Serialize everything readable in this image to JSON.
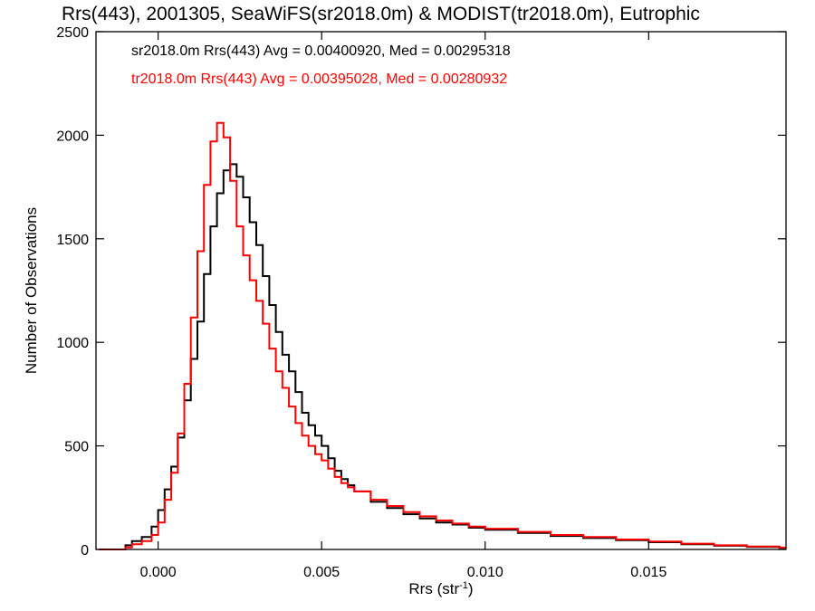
{
  "chart_data": {
    "type": "line",
    "title": "Rrs(443), 2001305, SeaWiFS(sr2018.0m) & MODIST(tr2018.0m), Eutrophic",
    "xlabel": "Rrs (str",
    "xlabel_sup": "-1",
    "xlabel_end": ")",
    "ylabel": "Number of Observations",
    "xlim": [
      -0.0019,
      0.0192
    ],
    "ylim": [
      0,
      2500
    ],
    "x_ticks": [
      0.0,
      0.005,
      0.01,
      0.015
    ],
    "x_tick_labels": [
      "0.000",
      "0.005",
      "0.010",
      "0.015"
    ],
    "y_ticks": [
      0,
      500,
      1000,
      1500,
      2000,
      2500
    ],
    "y_tick_labels": [
      "0",
      "500",
      "1000",
      "1500",
      "2000",
      "2500"
    ],
    "legend": {
      "placement": "top-left",
      "entries": [
        "sr2018.0m Rrs(443) Avg = 0.00400920, Med = 0.00295318",
        "tr2018.0m Rrs(443) Avg = 0.00395028, Med = 0.00280932"
      ]
    },
    "series": [
      {
        "color": "#000000",
        "x": [
          -0.0018,
          -0.0012,
          -0.001,
          -0.0008,
          -0.0005,
          -0.0002,
          0.0,
          0.0002,
          0.0004,
          0.0006,
          0.0008,
          0.001,
          0.0012,
          0.0014,
          0.0016,
          0.0018,
          0.002,
          0.0022,
          0.0024,
          0.0026,
          0.0028,
          0.003,
          0.0032,
          0.0034,
          0.0036,
          0.0038,
          0.004,
          0.0042,
          0.0044,
          0.0046,
          0.0048,
          0.005,
          0.0052,
          0.0054,
          0.0056,
          0.0058,
          0.006,
          0.0065,
          0.007,
          0.0075,
          0.008,
          0.0085,
          0.009,
          0.0095,
          0.01,
          0.011,
          0.012,
          0.013,
          0.014,
          0.015,
          0.016,
          0.017,
          0.018,
          0.019
        ],
        "y": [
          0,
          0,
          20,
          40,
          60,
          110,
          190,
          290,
          400,
          540,
          720,
          920,
          1100,
          1330,
          1560,
          1720,
          1830,
          1860,
          1800,
          1700,
          1580,
          1470,
          1320,
          1180,
          1050,
          940,
          860,
          760,
          660,
          600,
          550,
          500,
          440,
          380,
          340,
          310,
          280,
          230,
          200,
          170,
          150,
          130,
          120,
          105,
          95,
          80,
          65,
          55,
          45,
          35,
          25,
          18,
          12,
          8
        ]
      },
      {
        "color": "#ff0000",
        "x": [
          -0.0018,
          -0.0012,
          -0.001,
          -0.0008,
          -0.0005,
          -0.0002,
          0.0,
          0.0002,
          0.0004,
          0.0006,
          0.0008,
          0.001,
          0.0012,
          0.0014,
          0.0016,
          0.0018,
          0.002,
          0.0022,
          0.0024,
          0.0026,
          0.0028,
          0.003,
          0.0032,
          0.0034,
          0.0036,
          0.0038,
          0.004,
          0.0042,
          0.0044,
          0.0046,
          0.0048,
          0.005,
          0.0052,
          0.0054,
          0.0056,
          0.0058,
          0.006,
          0.0065,
          0.007,
          0.0075,
          0.008,
          0.0085,
          0.009,
          0.0095,
          0.01,
          0.011,
          0.012,
          0.013,
          0.014,
          0.015,
          0.016,
          0.017,
          0.018,
          0.019
        ],
        "y": [
          0,
          0,
          10,
          25,
          40,
          70,
          130,
          240,
          370,
          560,
          800,
          1120,
          1440,
          1760,
          1970,
          2060,
          1990,
          1780,
          1560,
          1420,
          1300,
          1200,
          1090,
          970,
          860,
          780,
          690,
          610,
          550,
          500,
          460,
          430,
          390,
          350,
          320,
          300,
          280,
          240,
          210,
          180,
          160,
          140,
          125,
          110,
          100,
          85,
          70,
          60,
          48,
          38,
          28,
          20,
          14,
          9
        ]
      }
    ]
  }
}
